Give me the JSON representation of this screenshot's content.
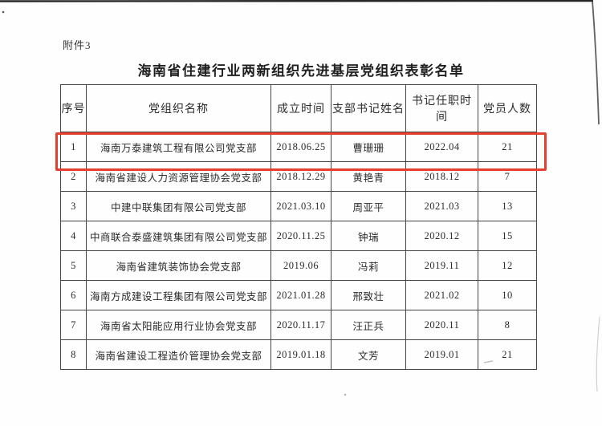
{
  "page": {
    "attachment_label": "附件3",
    "title": "海南省住建行业两新组织先进基层党组织表彰名单"
  },
  "table": {
    "headers": [
      "序号",
      "党组织名称",
      "成立时间",
      "支部书记姓名",
      "书记任职时间",
      "党员人数"
    ],
    "rows": [
      [
        "1",
        "海南万泰建筑工程有限公司党支部",
        "2018.06.25",
        "曹珊珊",
        "2022.04",
        "21"
      ],
      [
        "2",
        "海南省建设人力资源管理协会党支部",
        "2018.12.29",
        "黄艳青",
        "2018.12",
        "7"
      ],
      [
        "3",
        "中建中联集团有限公司党支部",
        "2021.03.10",
        "周亚平",
        "2021.03",
        "13"
      ],
      [
        "4",
        "中商联合泰盛建筑集团有限公司党支部",
        "2020.11.25",
        "钟瑞",
        "2020.12",
        "15"
      ],
      [
        "5",
        "海南省建筑装饰协会党支部",
        "2019.06",
        "冯莉",
        "2019.11",
        "12"
      ],
      [
        "6",
        "海南方成建设工程集团有限公司党支部",
        "2021.01.28",
        "邢致壮",
        "2021.02",
        "10"
      ],
      [
        "7",
        "海南省太阳能应用行业协会党支部",
        "2020.11.17",
        "汪正兵",
        "2020.11",
        "8"
      ],
      [
        "8",
        "海南省建设工程造价管理协会党支部",
        "2019.01.18",
        "文芳",
        "2019.01",
        "21"
      ]
    ],
    "highlighted_row_index": 0
  },
  "colors": {
    "highlight_border": "#e5402f",
    "table_border": "#454545"
  }
}
